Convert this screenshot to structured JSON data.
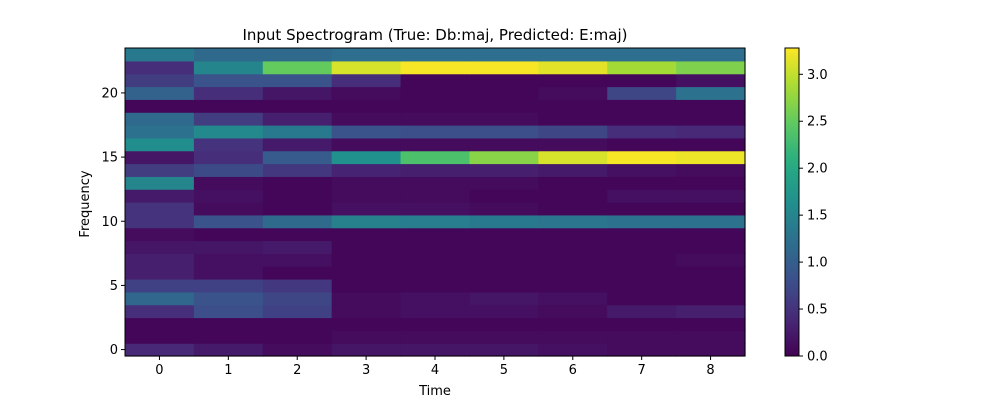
{
  "chart_data": {
    "type": "heatmap",
    "title": "Input Spectrogram (True: Db:maj, Predicted: E:maj)",
    "xlabel": "Time",
    "ylabel": "Frequency",
    "x_ticks": [
      0,
      1,
      2,
      3,
      4,
      5,
      6,
      7,
      8
    ],
    "y_ticks": [
      0,
      5,
      10,
      15,
      20
    ],
    "xlim": [
      -0.5,
      8.5
    ],
    "ylim": [
      -0.5,
      23.5
    ],
    "colormap": "viridis",
    "colorbar": {
      "range": [
        0.0,
        3.28
      ],
      "ticks": [
        "0.0",
        "0.5",
        "1.0",
        "1.5",
        "2.0",
        "2.5",
        "3.0"
      ]
    },
    "row_order": "frequency bin 0 first (bottom row)",
    "values": [
      [
        0.4,
        0.25,
        0.1,
        0.2,
        0.2,
        0.2,
        0.15,
        0.1,
        0.1
      ],
      [
        0.05,
        0.05,
        0.05,
        0.1,
        0.1,
        0.1,
        0.1,
        0.1,
        0.1
      ],
      [
        0.05,
        0.05,
        0.05,
        0.05,
        0.05,
        0.05,
        0.05,
        0.05,
        0.05
      ],
      [
        0.45,
        0.8,
        0.65,
        0.1,
        0.15,
        0.15,
        0.1,
        0.25,
        0.3
      ],
      [
        1.1,
        0.85,
        0.7,
        0.1,
        0.15,
        0.2,
        0.15,
        0.05,
        0.05
      ],
      [
        0.65,
        0.65,
        0.55,
        0.05,
        0.05,
        0.05,
        0.05,
        0.05,
        0.05
      ],
      [
        0.3,
        0.15,
        0.05,
        0.05,
        0.05,
        0.05,
        0.05,
        0.05,
        0.05
      ],
      [
        0.3,
        0.15,
        0.15,
        0.05,
        0.05,
        0.05,
        0.05,
        0.05,
        0.1
      ],
      [
        0.2,
        0.2,
        0.25,
        0.05,
        0.05,
        0.05,
        0.05,
        0.05,
        0.05
      ],
      [
        0.1,
        0.05,
        0.05,
        0.05,
        0.05,
        0.05,
        0.05,
        0.05,
        0.05
      ],
      [
        0.5,
        0.85,
        1.15,
        1.45,
        1.4,
        1.35,
        1.3,
        1.25,
        1.25
      ],
      [
        0.5,
        0.1,
        0.05,
        0.15,
        0.15,
        0.1,
        0.05,
        0.05,
        0.05
      ],
      [
        0.25,
        0.15,
        0.05,
        0.1,
        0.1,
        0.05,
        0.05,
        0.15,
        0.15
      ],
      [
        1.5,
        0.1,
        0.05,
        0.1,
        0.1,
        0.1,
        0.05,
        0.05,
        0.05
      ],
      [
        0.6,
        0.75,
        0.55,
        0.35,
        0.3,
        0.3,
        0.25,
        0.15,
        0.1
      ],
      [
        0.2,
        0.45,
        0.95,
        1.65,
        2.35,
        2.7,
        3.1,
        3.25,
        3.2
      ],
      [
        1.6,
        0.5,
        0.25,
        0.1,
        0.1,
        0.1,
        0.1,
        0.05,
        0.05
      ],
      [
        1.25,
        1.55,
        1.35,
        0.85,
        0.8,
        0.8,
        0.7,
        0.45,
        0.4
      ],
      [
        1.15,
        0.6,
        0.3,
        0.1,
        0.1,
        0.1,
        0.05,
        0.05,
        0.05
      ],
      [
        0.05,
        0.05,
        0.05,
        0.05,
        0.05,
        0.05,
        0.05,
        0.05,
        0.05
      ],
      [
        1.05,
        0.45,
        0.2,
        0.1,
        0.05,
        0.05,
        0.1,
        0.7,
        1.25
      ],
      [
        0.6,
        0.85,
        0.85,
        0.45,
        0.05,
        0.05,
        0.05,
        0.05,
        0.15
      ],
      [
        0.45,
        1.5,
        2.5,
        3.1,
        3.25,
        3.25,
        3.15,
        2.85,
        2.65
      ],
      [
        1.35,
        1.15,
        1.15,
        1.2,
        1.2,
        1.2,
        1.2,
        1.2,
        1.2
      ]
    ]
  }
}
